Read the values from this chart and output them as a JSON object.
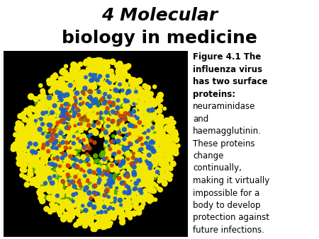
{
  "title_line1": "4 Molecular",
  "title_line2": "biology in medicine",
  "title_fontsize": 18,
  "title_fontstyle_1": "italic",
  "title_fontstyle_2": "normal",
  "title_fontweight": "bold",
  "background_color": "#ffffff",
  "image_bg_color": "#000000",
  "caption_fontsize": 8.5,
  "wrapped_lines": [
    [
      "Figure 4.1 The",
      true
    ],
    [
      "influenza virus",
      true
    ],
    [
      "has two surface",
      true
    ],
    [
      "proteins:",
      true
    ],
    [
      "neuraminidase",
      false
    ],
    [
      "and",
      false
    ],
    [
      "haemagglutinin.",
      false
    ],
    [
      "These proteins",
      false
    ],
    [
      "change",
      false
    ],
    [
      "continually,",
      false
    ],
    [
      "making it virtually",
      false
    ],
    [
      "impossible for a",
      false
    ],
    [
      "body to develop",
      false
    ],
    [
      "protection against",
      false
    ],
    [
      "future infections.",
      false
    ]
  ]
}
